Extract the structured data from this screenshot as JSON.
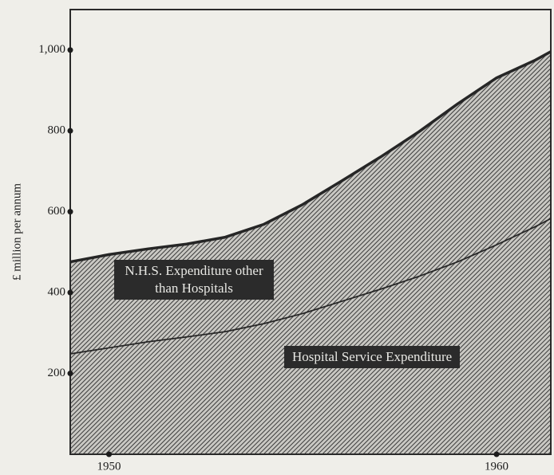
{
  "chart_data": {
    "type": "stacked_area",
    "y_label": "£ million per annum",
    "x": [
      1949,
      1950,
      1951,
      1952,
      1953,
      1954,
      1955,
      1956,
      1957,
      1958,
      1959,
      1960,
      1961,
      1961.4
    ],
    "series": [
      {
        "name": "Hospital Service Expenditure",
        "color": "#8f8f8c",
        "values": [
          250,
          265,
          280,
          292,
          305,
          325,
          350,
          380,
          410,
          442,
          478,
          520,
          565,
          585
        ]
      },
      {
        "name": "N.H.S. Expenditure other than Hospitals",
        "color": "#9d9d9a",
        "values": [
          226,
          229,
          228,
          228,
          232,
          244,
          268,
          296,
          325,
          356,
          389,
          411,
          410,
          411
        ]
      }
    ],
    "xlim": [
      1949,
      1961.4
    ],
    "xticks": [
      1950,
      1960
    ],
    "ylim": [
      0,
      1100
    ],
    "yticks": [
      200,
      400,
      600,
      800,
      {
        "value": 1000,
        "label": "1,000"
      }
    ]
  }
}
